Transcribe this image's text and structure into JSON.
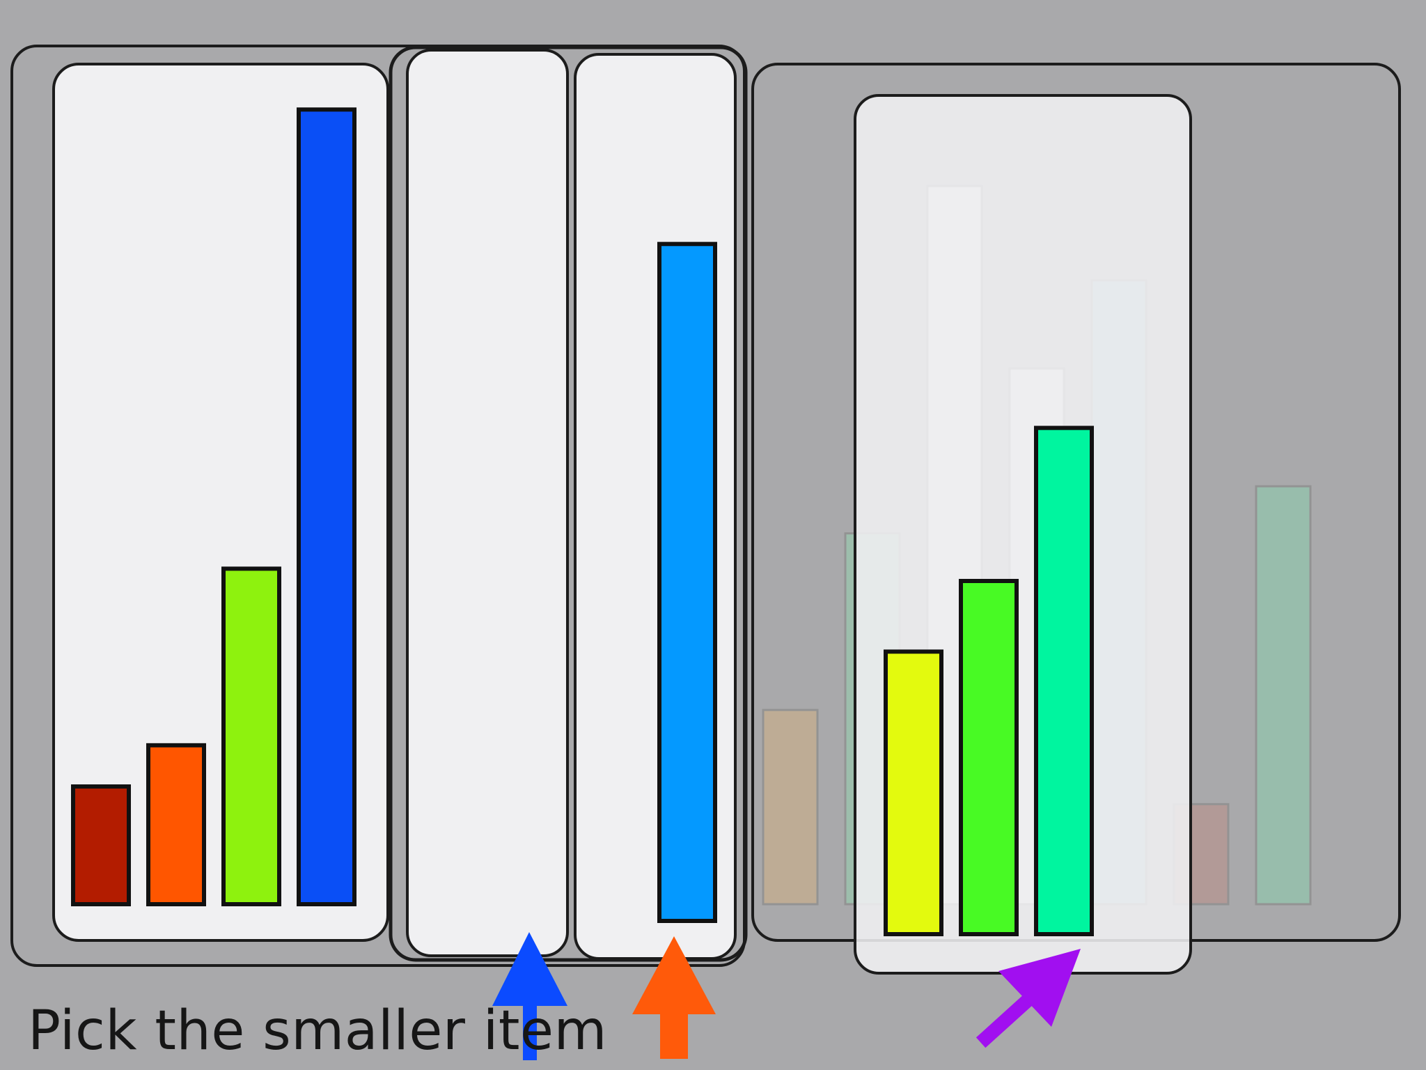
{
  "caption": "Pick the smaller item",
  "colors": {
    "background": "#a9a9ab",
    "card": "#f0f0f2",
    "outline": "#1c1c1c",
    "arrow_blue": "#0b4bff",
    "arrow_orange": "#ff5a0a",
    "arrow_purple": "#a10ff0"
  },
  "panels": {
    "left_group": {
      "bars": [
        {
          "value": 1.0,
          "color": "#b31c00"
        },
        {
          "value": 1.35,
          "color": "#ff5600"
        },
        {
          "value": 2.85,
          "color": "#8ef20e"
        },
        {
          "value": 6.75,
          "color": "#0a4ff6"
        }
      ]
    },
    "middle_pair": {
      "empty_card_bars": [],
      "single_bar": {
        "value": 5.75,
        "color": "#0499ff"
      }
    },
    "right_group": {
      "faded_bars": [
        {
          "value": 1.65,
          "color": "#c6ad8e"
        },
        {
          "value": 3.15,
          "color": "#99c6ad"
        },
        {
          "value": 6.1,
          "color": "#ecf0f0"
        },
        {
          "value": 4.55,
          "color": "#eef2f0"
        },
        {
          "value": 5.3,
          "color": "#94bfc7"
        },
        {
          "value": 0.85,
          "color": "#b59591"
        },
        {
          "value": 3.55,
          "color": "#93c4ad"
        }
      ],
      "bars": [
        {
          "value": 2.4,
          "color": "#e3fa0e"
        },
        {
          "value": 3.0,
          "color": "#48fa24"
        },
        {
          "value": 4.3,
          "color": "#00f59f"
        }
      ]
    }
  },
  "arrows": [
    {
      "name": "blue",
      "color": "#0b4bff"
    },
    {
      "name": "orange",
      "color": "#ff5a0a"
    },
    {
      "name": "purple",
      "color": "#a10ff0"
    }
  ]
}
